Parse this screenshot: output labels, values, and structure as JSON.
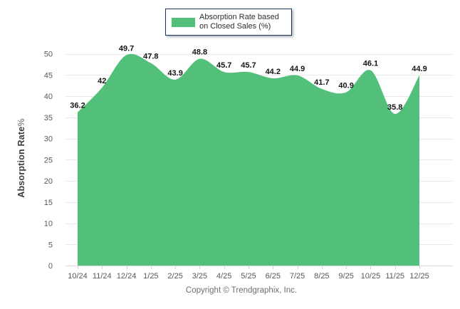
{
  "chart_data": {
    "type": "area",
    "legend": "Absorption Rate based on Closed Sales (%)",
    "legend_position": "top-center",
    "ylabel": "Absorption Rate",
    "ylabel_suffix": "%",
    "xlabel": "",
    "categories": [
      "10/24",
      "11/24",
      "12/24",
      "1/25",
      "2/25",
      "3/25",
      "4/25",
      "5/25",
      "6/25",
      "7/25",
      "8/25",
      "9/25",
      "10/25",
      "11/25",
      "12/25"
    ],
    "series": [
      {
        "name": "Absorption Rate based on Closed Sales (%)",
        "values": [
          36.2,
          42,
          49.7,
          47.8,
          43.9,
          48.8,
          45.7,
          45.7,
          44.2,
          44.9,
          41.7,
          40.9,
          46.1,
          35.8,
          44.9
        ]
      }
    ],
    "ylim": [
      0,
      50
    ],
    "yticks": [
      0,
      5,
      10,
      15,
      20,
      25,
      30,
      35,
      40,
      45,
      50
    ],
    "grid": true,
    "colors": {
      "area_fill": "#52bf7b",
      "grid_line": "#e9e9e9",
      "baseline": "#dcdcdc",
      "tick_mark": "#d0d0d0",
      "axis_text": "#595959",
      "data_label": "#141414",
      "legend_border": "#17375e"
    }
  },
  "footer": {
    "copyright": "Copyright © Trendgraphix, Inc."
  }
}
